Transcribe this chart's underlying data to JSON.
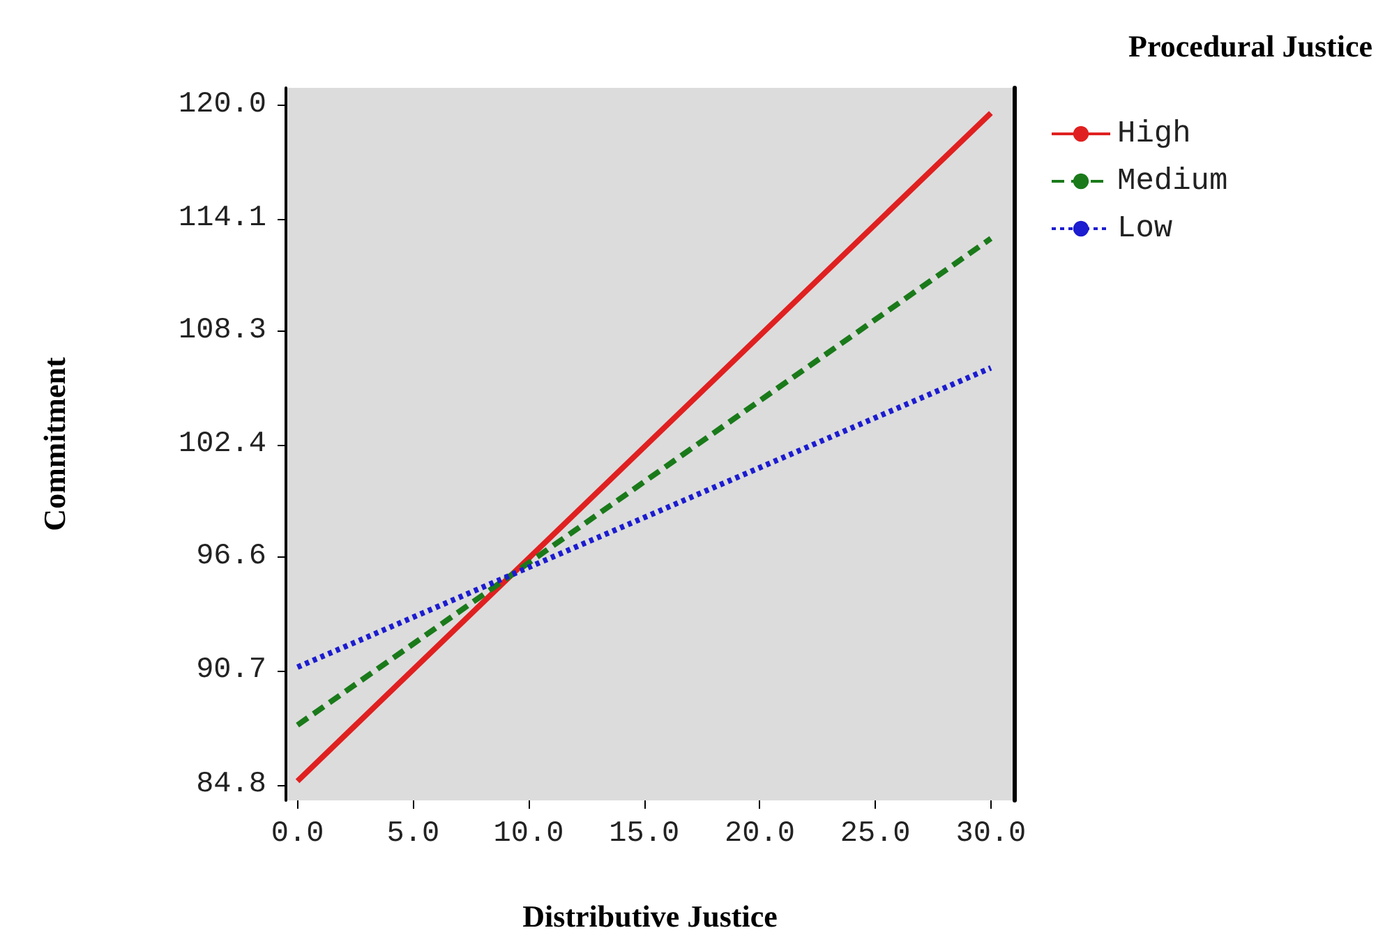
{
  "chart_data": {
    "type": "line",
    "xlabel": "Distributive Justice",
    "ylabel": "Commitment",
    "legend_title": "Procedural Justice",
    "xlim": [
      -0.5,
      31
    ],
    "xticks": [
      {
        "value": 0,
        "label": "0.0"
      },
      {
        "value": 5,
        "label": "5.0"
      },
      {
        "value": 10,
        "label": "10.0"
      },
      {
        "value": 15,
        "label": "15.0"
      },
      {
        "value": 20,
        "label": "20.0"
      },
      {
        "value": 25,
        "label": "25.0"
      },
      {
        "value": 30,
        "label": "30.0"
      }
    ],
    "ylim": [
      84,
      120.9
    ],
    "yticks": [
      84.8,
      90.7,
      96.6,
      102.4,
      108.3,
      114.1,
      {
        "value": 120,
        "label": "120.0"
      }
    ],
    "x": [
      0,
      30
    ],
    "series": [
      {
        "name": "High",
        "color": "#e02020",
        "values": [
          85.0,
          119.6
        ],
        "line_style": "solid"
      },
      {
        "name": "Medium",
        "color": "#1a7a1a",
        "values": [
          87.9,
          113.1
        ],
        "line_style": "dashed"
      },
      {
        "name": "Low",
        "color": "#1c1cd0",
        "values": [
          90.9,
          106.4
        ],
        "line_style": "dotted"
      }
    ],
    "grid": false,
    "legend": "top right",
    "marker": "none"
  }
}
